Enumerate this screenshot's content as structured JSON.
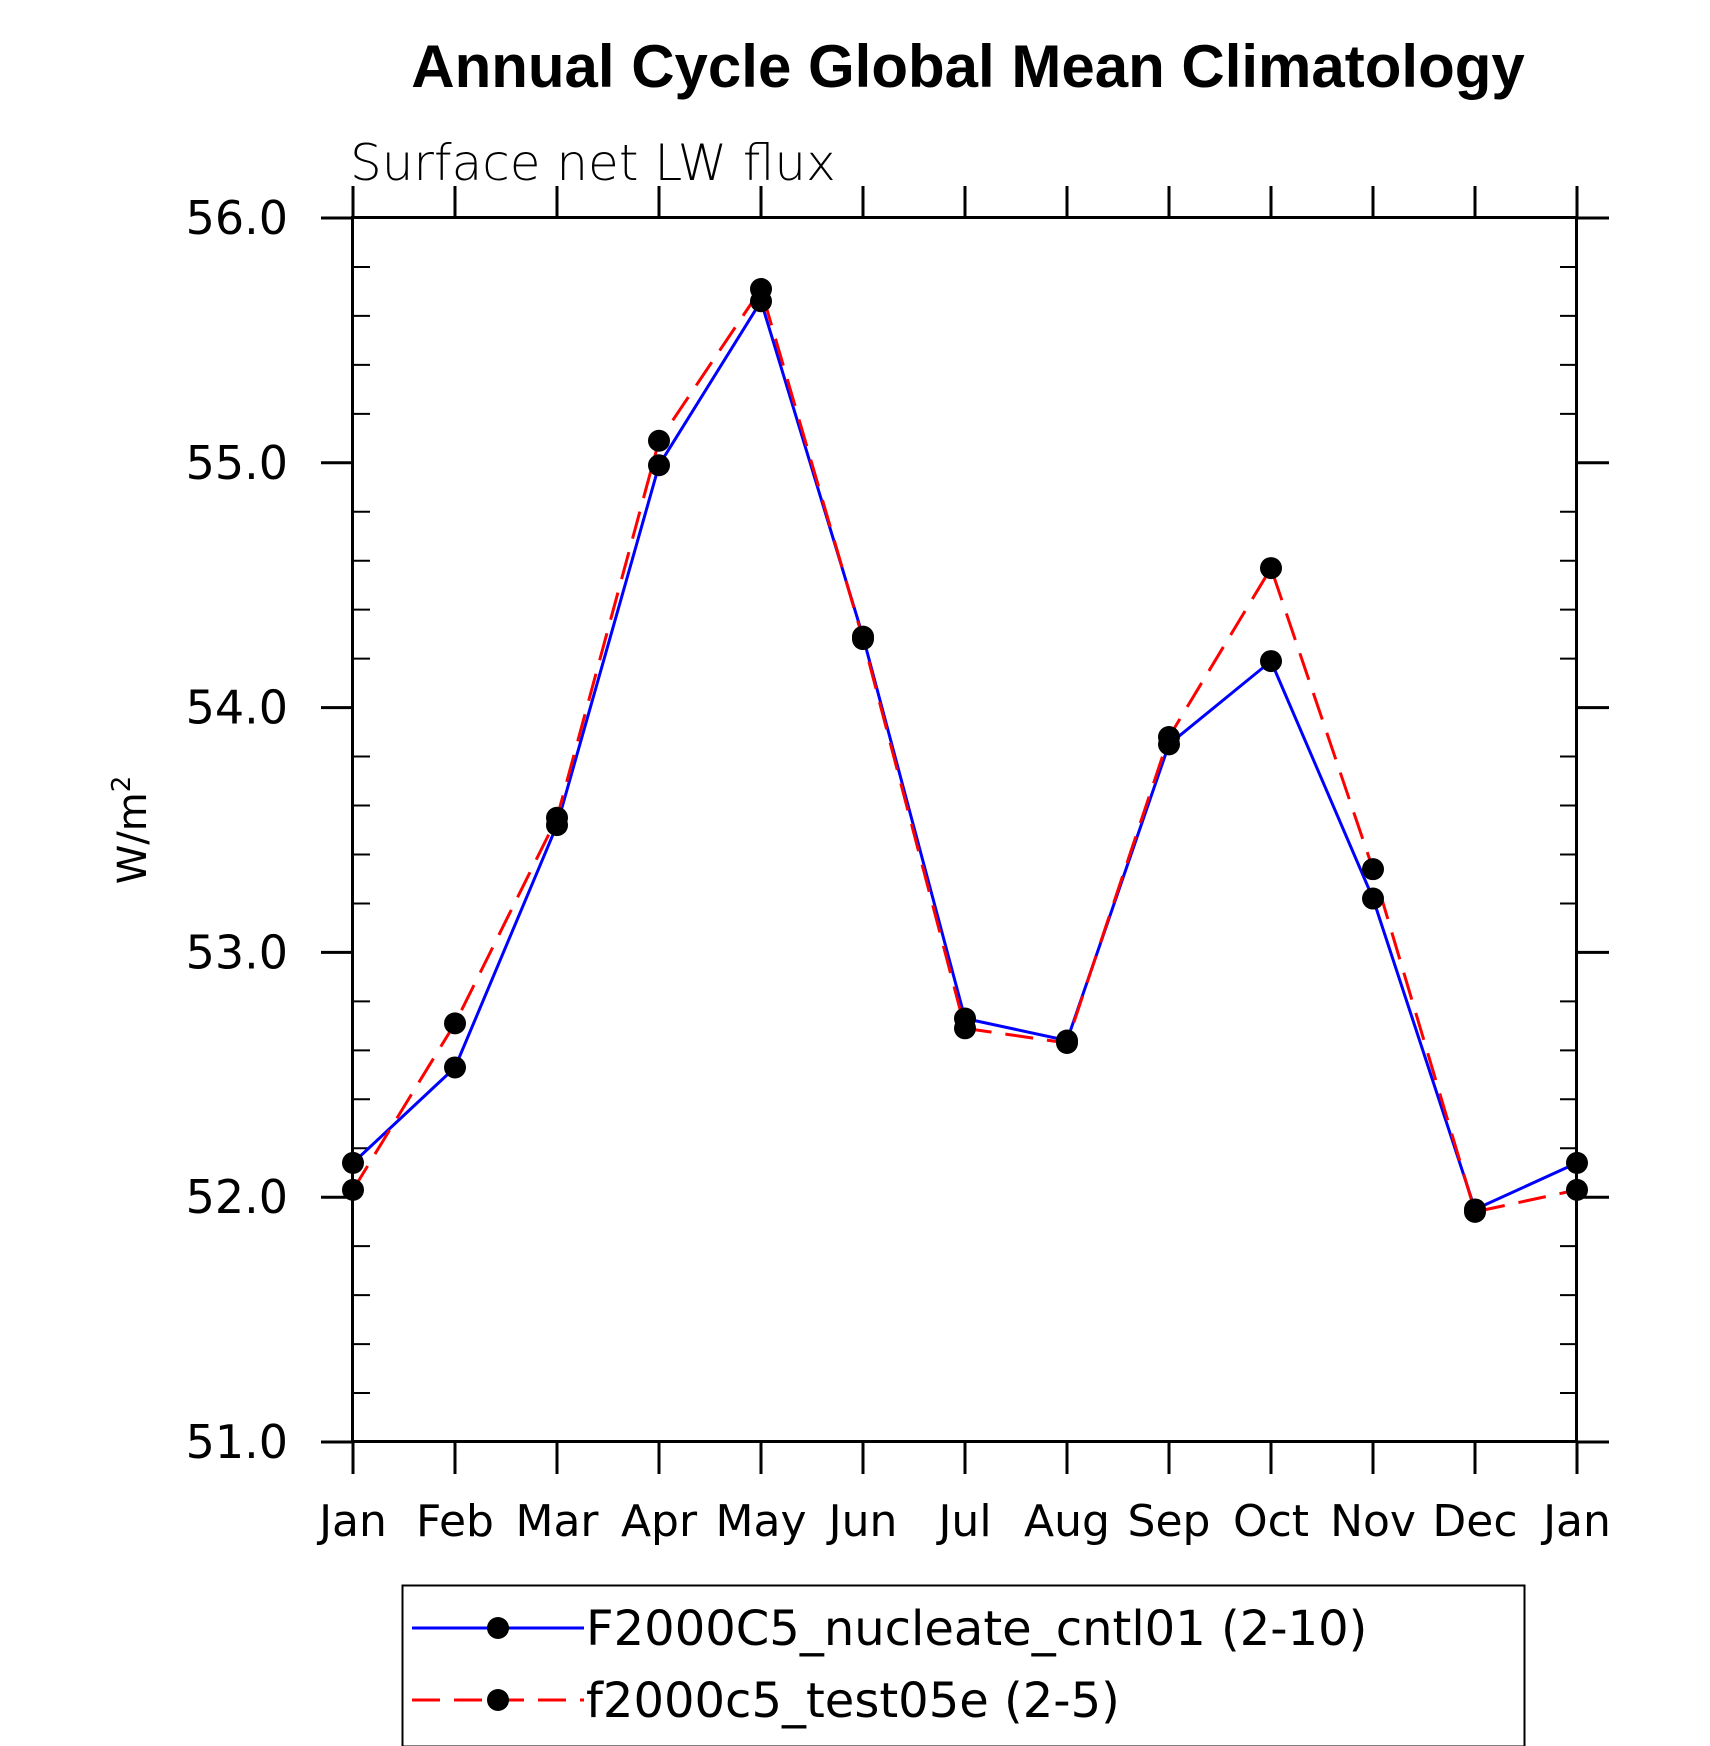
{
  "chart_data": {
    "type": "line",
    "title": "Annual Cycle Global Mean Climatology",
    "subtitle": "Surface net LW flux",
    "ylabel_base": "W/m",
    "ylabel_sup": "2",
    "ylim": [
      51.0,
      56.0
    ],
    "yticks": [
      "51.0",
      "52.0",
      "53.0",
      "54.0",
      "55.0",
      "56.0"
    ],
    "categories": [
      "Jan",
      "Feb",
      "Mar",
      "Apr",
      "May",
      "Jun",
      "Jul",
      "Aug",
      "Sep",
      "Oct",
      "Nov",
      "Dec",
      "Jan"
    ],
    "series": [
      {
        "name": "F2000C5_nucleate_cntl01 (2-10)",
        "color": "#0000ff",
        "dash": "solid",
        "values": [
          52.14,
          52.53,
          53.52,
          54.99,
          55.66,
          54.29,
          52.73,
          52.64,
          53.85,
          54.19,
          53.22,
          51.95,
          52.14
        ]
      },
      {
        "name": "f2000c5_test05e (2-5)",
        "color": "#ff0000",
        "dash": "dashed",
        "values": [
          52.03,
          52.71,
          53.55,
          55.09,
          55.71,
          54.28,
          52.69,
          52.63,
          53.88,
          54.57,
          53.34,
          51.94,
          52.03
        ]
      }
    ],
    "legend_position": "bottom",
    "grid": false
  }
}
